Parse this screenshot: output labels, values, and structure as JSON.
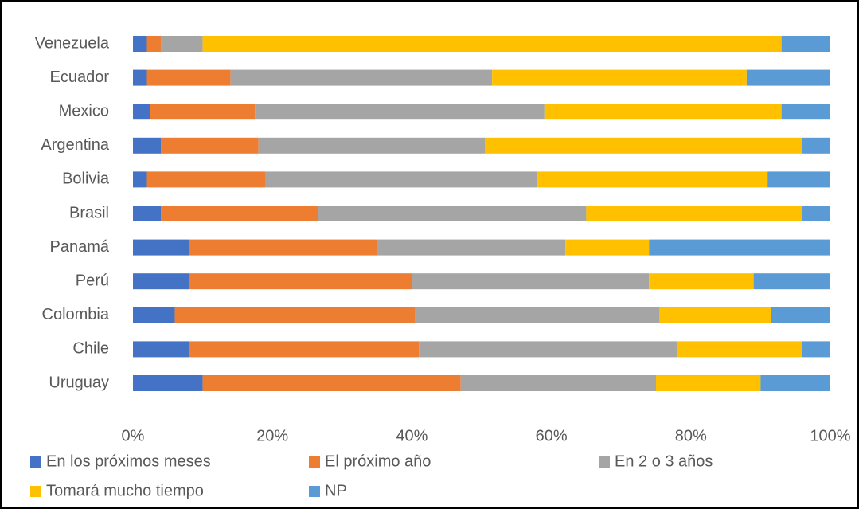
{
  "chart_data": {
    "type": "stacked_barh",
    "categories": [
      "Venezuela",
      "Ecuador",
      "Mexico",
      "Argentina",
      "Bolivia",
      "Brasil",
      "Panamá",
      "Perú",
      "Colombia",
      "Chile",
      "Uruguay"
    ],
    "series": [
      {
        "name": "En los próximos meses",
        "color": "#4472c4",
        "values": [
          2,
          2,
          2.5,
          4,
          2,
          4,
          8,
          8,
          6,
          8,
          10
        ]
      },
      {
        "name": "El próximo año",
        "color": "#ed7d31",
        "values": [
          2,
          12,
          15,
          14,
          17,
          22.5,
          27,
          32,
          34.5,
          33,
          37
        ]
      },
      {
        "name": "En 2 o 3 años",
        "color": "#a5a5a5",
        "values": [
          6,
          37.5,
          41.5,
          32.5,
          39,
          38.5,
          27,
          34,
          35,
          37,
          28
        ]
      },
      {
        "name": "Tomará mucho tiempo",
        "color": "#ffc000",
        "values": [
          83,
          36.5,
          34,
          45.5,
          33,
          31,
          12,
          15,
          16,
          18,
          15
        ]
      },
      {
        "name": "NP",
        "color": "#5b9bd5",
        "values": [
          7,
          12,
          7,
          4,
          9,
          4,
          26,
          11,
          8.5,
          4,
          10
        ]
      }
    ],
    "xlim": [
      0,
      100
    ],
    "xticks": [
      {
        "value": 0,
        "label": "0%"
      },
      {
        "value": 20,
        "label": "20%"
      },
      {
        "value": 40,
        "label": "40%"
      },
      {
        "value": 60,
        "label": "60%"
      },
      {
        "value": 80,
        "label": "80%"
      },
      {
        "value": 100,
        "label": "100%"
      }
    ]
  }
}
